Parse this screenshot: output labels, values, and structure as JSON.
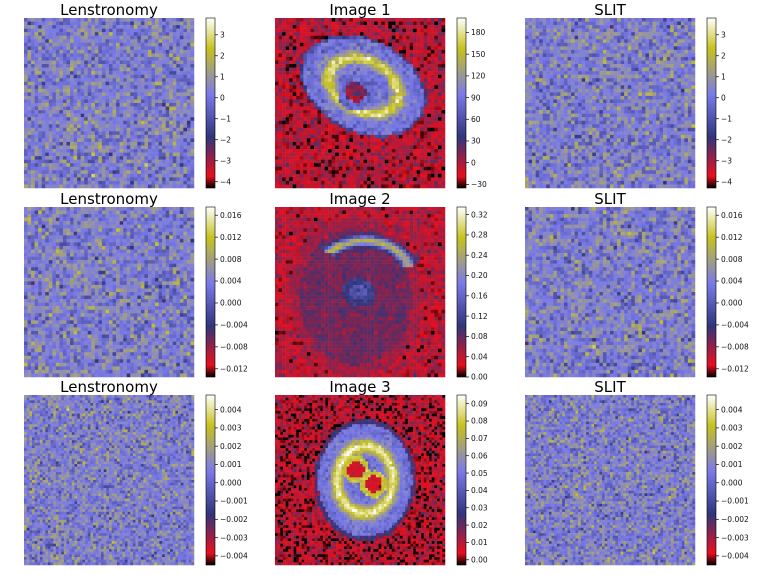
{
  "figure": {
    "layout": "3 rows x 3 panels; each panel is a pixelated image with a vertical colorbar on its right"
  },
  "colormap": {
    "name": "gist_stern-like",
    "stops": [
      "#000000",
      "#e8101e",
      "#30357a",
      "#7a7ae8",
      "#c7c21e",
      "#ffffff"
    ]
  },
  "chart_data": [
    {
      "type": "heatmap",
      "title": "Lenstronomy",
      "pattern": "noise",
      "grid": 48,
      "seed": 11,
      "colorbar": {
        "ticks": [
          "3",
          "2",
          "1",
          "0",
          "−1",
          "−2",
          "−3",
          "−4"
        ],
        "range": [
          -4.3,
          3.8
        ]
      }
    },
    {
      "type": "heatmap",
      "title": "Image 1",
      "pattern": "ring1",
      "grid": 48,
      "seed": 21,
      "colorbar": {
        "ticks": [
          "180",
          "150",
          "120",
          "90",
          "60",
          "30",
          "0",
          "−30"
        ],
        "range": [
          -35,
          200
        ]
      }
    },
    {
      "type": "heatmap",
      "title": "SLIT",
      "pattern": "noise",
      "grid": 48,
      "seed": 31,
      "colorbar": {
        "ticks": [
          "3",
          "2",
          "1",
          "0",
          "−1",
          "−2",
          "−3",
          "−4"
        ],
        "range": [
          -4.3,
          3.8
        ]
      }
    },
    {
      "type": "heatmap",
      "title": "Lenstronomy",
      "pattern": "noise",
      "grid": 48,
      "seed": 12,
      "colorbar": {
        "ticks": [
          "0.016",
          "0.012",
          "0.008",
          "0.004",
          "0.000",
          "−0.004",
          "−0.008",
          "−0.012"
        ],
        "range": [
          -0.0135,
          0.0175
        ]
      }
    },
    {
      "type": "heatmap",
      "title": "Image 2",
      "pattern": "arc2",
      "grid": 48,
      "seed": 22,
      "colorbar": {
        "ticks": [
          "0.32",
          "0.28",
          "0.24",
          "0.20",
          "0.16",
          "0.12",
          "0.08",
          "0.04",
          "0.00"
        ],
        "range": [
          0,
          0.335
        ]
      }
    },
    {
      "type": "heatmap",
      "title": "SLIT",
      "pattern": "noise",
      "grid": 48,
      "seed": 32,
      "colorbar": {
        "ticks": [
          "0.016",
          "0.012",
          "0.008",
          "0.004",
          "0.000",
          "−0.004",
          "−0.008",
          "−0.012"
        ],
        "range": [
          -0.0135,
          0.0175
        ]
      }
    },
    {
      "type": "heatmap",
      "title": "Lenstronomy",
      "pattern": "noise",
      "grid": 64,
      "seed": 13,
      "colorbar": {
        "ticks": [
          "0.004",
          "0.003",
          "0.002",
          "0.001",
          "0.000",
          "−0.001",
          "−0.002",
          "−0.003",
          "−0.004"
        ],
        "range": [
          -0.0045,
          0.0048
        ]
      }
    },
    {
      "type": "heatmap",
      "title": "Image 3",
      "pattern": "ring3",
      "grid": 64,
      "seed": 23,
      "colorbar": {
        "ticks": [
          "0.09",
          "0.08",
          "0.07",
          "0.06",
          "0.05",
          "0.04",
          "0.03",
          "0.02",
          "0.01",
          "0.00"
        ],
        "range": [
          -0.003,
          0.095
        ]
      }
    },
    {
      "type": "heatmap",
      "title": "SLIT",
      "pattern": "noise",
      "grid": 64,
      "seed": 33,
      "colorbar": {
        "ticks": [
          "0.004",
          "0.003",
          "0.002",
          "0.001",
          "0.000",
          "−0.001",
          "−0.002",
          "−0.003",
          "−0.004"
        ],
        "range": [
          -0.0045,
          0.0048
        ]
      }
    }
  ]
}
